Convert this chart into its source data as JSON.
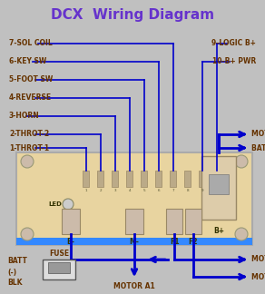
{
  "title": "DCX  Wiring Diagram",
  "title_color": "#6633cc",
  "title_fontsize": 11,
  "bg_color": "#c0c0c0",
  "wire_color": "#0000cc",
  "text_color": "#663300",
  "board_color": "#e8d4a0",
  "left_labels": [
    "7-SOL COIL",
    "6-KEY SW",
    "5-FOOT SW",
    "4-REVERSE",
    "3-HORN",
    "2-THROT-2",
    "1-THROT-1"
  ],
  "right_labels_top": [
    "9-LOGIC B+",
    "10-B+ PWR"
  ],
  "label_fontsize": 5.5
}
